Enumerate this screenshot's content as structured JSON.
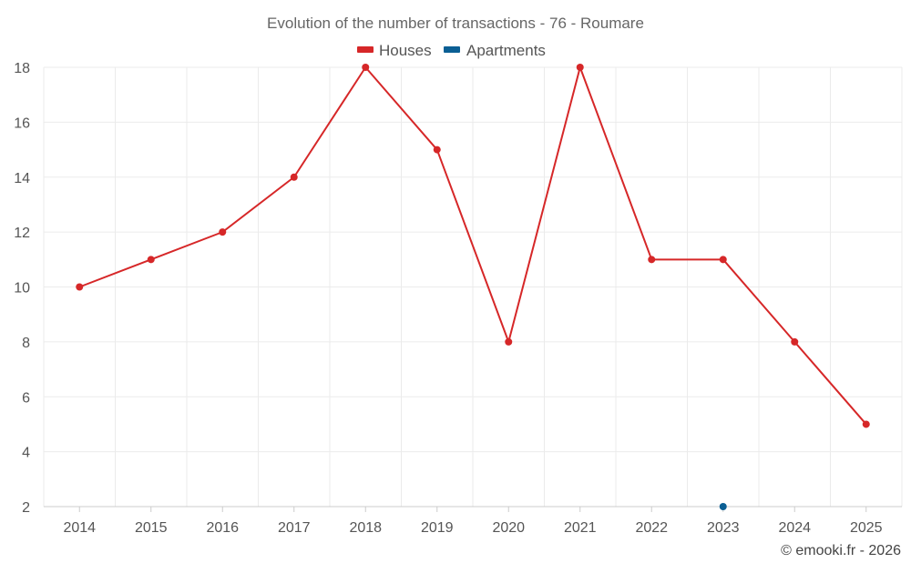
{
  "chart_data": {
    "type": "line",
    "title": "Evolution of the number of transactions - 76 - Roumare",
    "x": [
      2014,
      2015,
      2016,
      2017,
      2018,
      2019,
      2020,
      2021,
      2022,
      2023,
      2024,
      2025
    ],
    "series": [
      {
        "name": "Houses",
        "color": "#d62728",
        "values": [
          10,
          11,
          12,
          14,
          18,
          15,
          8,
          18,
          11,
          11,
          8,
          5
        ]
      },
      {
        "name": "Apartments",
        "color": "#0b5f94",
        "values": [
          null,
          null,
          null,
          null,
          null,
          null,
          null,
          null,
          null,
          2,
          null,
          null
        ]
      }
    ],
    "ylim": [
      2,
      18
    ],
    "yticks": [
      2,
      4,
      6,
      8,
      10,
      12,
      14,
      16,
      18
    ],
    "grid": true,
    "legend_position": "top-center"
  },
  "credit": "© emooki.fr - 2026"
}
